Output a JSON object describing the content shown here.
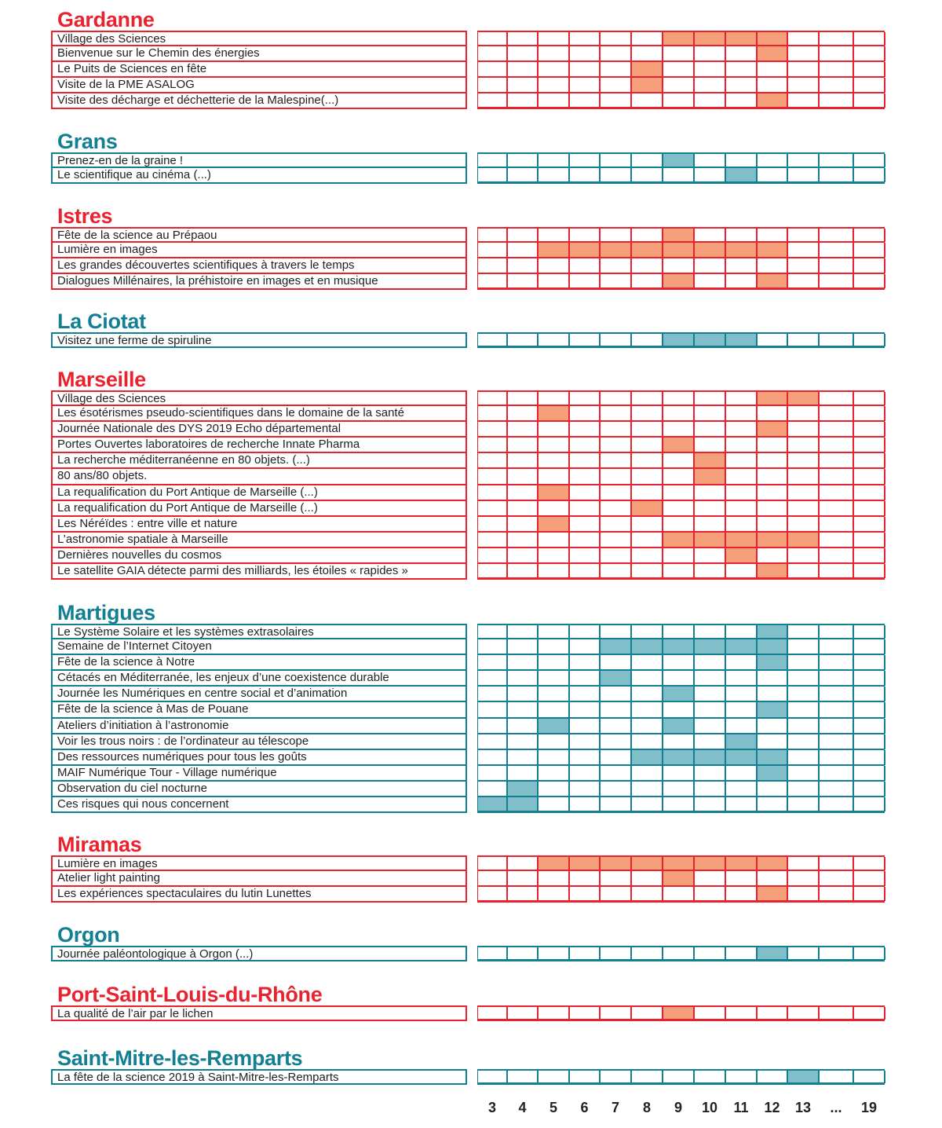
{
  "columns": [
    "3",
    "4",
    "5",
    "6",
    "7",
    "8",
    "9",
    "10",
    "11",
    "12",
    "13",
    "...",
    "19"
  ],
  "colors": {
    "red": "#e8232f",
    "red_fill": "#f5a07a",
    "teal": "#137f93",
    "teal_fill": "#80bfc9"
  },
  "sections": [
    {
      "title": "Gardanne",
      "theme": "red",
      "rows": [
        {
          "label": "Village des Sciences",
          "days": [
            "9",
            "10",
            "11",
            "12"
          ]
        },
        {
          "label": "Bienvenue sur le Chemin des énergies",
          "days": [
            "12"
          ]
        },
        {
          "label": "Le Puits de Sciences en fête",
          "days": [
            "8"
          ]
        },
        {
          "label": "Visite de la PME ASALOG",
          "days": [
            "8"
          ]
        },
        {
          "label": "Visite des décharge et déchetterie de la Malespine(...)",
          "days": [
            "12"
          ]
        }
      ]
    },
    {
      "title": "Grans",
      "theme": "teal",
      "rows": [
        {
          "label": "Prenez-en de la graine !",
          "days": [
            "9"
          ]
        },
        {
          "label": "Le scientifique au cinéma (...)",
          "days": [
            "11"
          ]
        }
      ]
    },
    {
      "title": "Istres",
      "theme": "red",
      "rows": [
        {
          "label": "Fête de la science au Prépaou",
          "days": [
            "9"
          ]
        },
        {
          "label": "Lumière en images",
          "days": [
            "5",
            "6",
            "7",
            "8",
            "9",
            "10",
            "11",
            "12"
          ]
        },
        {
          "label": "Les grandes découvertes scientifiques à travers le temps",
          "days": []
        },
        {
          "label": "Dialogues Millénaires, la préhistoire en images et en musique",
          "days": [
            "9",
            "12"
          ]
        }
      ]
    },
    {
      "title": "La Ciotat",
      "theme": "teal",
      "rows": [
        {
          "label": "Visitez une ferme de spiruline",
          "days": [
            "9",
            "10",
            "11"
          ]
        }
      ]
    },
    {
      "title": "Marseille",
      "theme": "red",
      "rows": [
        {
          "label": "Village des Sciences",
          "days": [
            "12",
            "13"
          ]
        },
        {
          "label": "Les ésotérismes pseudo-scientifiques dans le domaine de la santé",
          "days": [
            "5"
          ]
        },
        {
          "label": "Journée Nationale des DYS 2019 Echo départemental",
          "days": [
            "12"
          ]
        },
        {
          "label": "Portes Ouvertes laboratoires de recherche Innate Pharma",
          "days": [
            "9"
          ]
        },
        {
          "label": "La recherche méditerranéenne en 80 objets. (...)",
          "days": [
            "10"
          ]
        },
        {
          "label": "80 ans/80 objets.",
          "days": [
            "10"
          ]
        },
        {
          "label": "La requalification du Port Antique de Marseille (...)",
          "days": [
            "5"
          ]
        },
        {
          "label": "La requalification du Port Antique de Marseille (...)",
          "days": [
            "8"
          ]
        },
        {
          "label": "Les Néréïdes : entre ville et nature",
          "days": [
            "5"
          ]
        },
        {
          "label": "L’astronomie spatiale à Marseille",
          "days": [
            "9",
            "10",
            "11",
            "12",
            "13"
          ]
        },
        {
          "label": "Dernières nouvelles du cosmos",
          "days": [
            "11"
          ]
        },
        {
          "label": "Le satellite GAIA détecte parmi des milliards, les étoiles « rapides »",
          "days": [
            "12"
          ]
        }
      ]
    },
    {
      "title": "Martigues",
      "theme": "teal",
      "rows": [
        {
          "label": "Le Système Solaire et les systèmes extrasolaires",
          "days": [
            "12"
          ]
        },
        {
          "label": "Semaine de l’Internet Citoyen",
          "days": [
            "7",
            "8",
            "9",
            "10",
            "11",
            "12"
          ]
        },
        {
          "label": "Fête de la science à Notre",
          "days": [
            "12"
          ]
        },
        {
          "label": "Cétacés en Méditerranée, les enjeux d’une coexistence durable",
          "days": [
            "7"
          ]
        },
        {
          "label": "Journée les Numériques en centre social et d’animation",
          "days": [
            "9"
          ]
        },
        {
          "label": "Fête de la science à Mas de Pouane",
          "days": [
            "12"
          ]
        },
        {
          "label": "Ateliers d’initiation à l’astronomie",
          "days": [
            "5",
            "9"
          ]
        },
        {
          "label": "Voir les trous noirs : de l’ordinateur au télescope",
          "days": [
            "11"
          ]
        },
        {
          "label": "Des ressources numériques pour tous les goûts",
          "days": [
            "8",
            "9",
            "10",
            "11",
            "12"
          ]
        },
        {
          "label": "MAIF Numérique Tour - Village numérique",
          "days": [
            "12"
          ]
        },
        {
          "label": "Observation du ciel nocturne",
          "days": [
            "4"
          ]
        },
        {
          "label": "Ces risques qui nous concernent",
          "days": [
            "3",
            "4"
          ]
        }
      ]
    },
    {
      "title": "Miramas",
      "theme": "red",
      "rows": [
        {
          "label": "Lumière en images",
          "days": [
            "5",
            "6",
            "7",
            "8",
            "9",
            "10",
            "11",
            "12"
          ]
        },
        {
          "label": "Atelier light painting",
          "days": [
            "9"
          ]
        },
        {
          "label": "Les expériences spectaculaires    du lutin Lunettes",
          "days": [
            "12"
          ]
        }
      ]
    },
    {
      "title": "Orgon",
      "theme": "teal",
      "rows": [
        {
          "label": "Journée paléontologique à Orgon (...)",
          "days": [
            "12"
          ]
        }
      ]
    },
    {
      "title": "Port-Saint-Louis-du-Rhône",
      "theme": "red",
      "rows": [
        {
          "label": "La qualité de l’air par le lichen",
          "days": [
            "9"
          ]
        }
      ]
    },
    {
      "title": "Saint-Mitre-les-Remparts",
      "theme": "teal",
      "rows": [
        {
          "label": "La fête de la science 2019 à Saint-Mitre-les-Remparts",
          "days": [
            "13"
          ]
        }
      ]
    }
  ]
}
